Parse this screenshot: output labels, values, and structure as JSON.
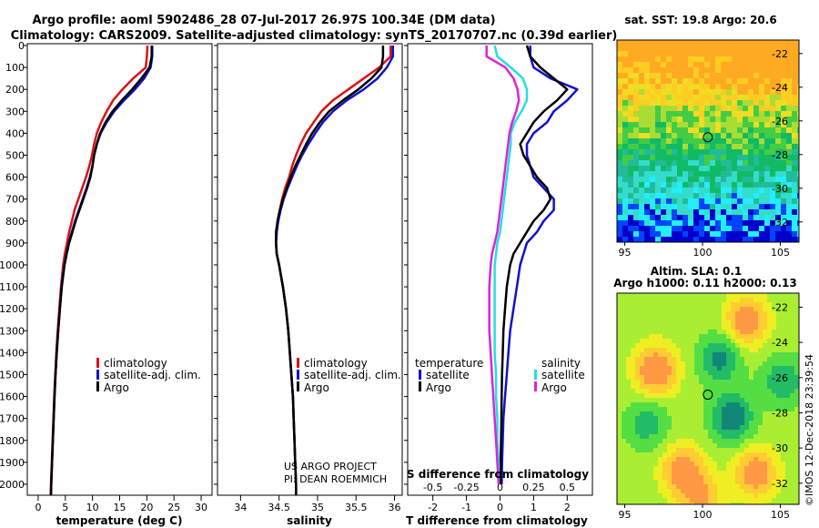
{
  "title_line1": "Argo profile: aoml 5902486_28 07-Jul-2017 26.97S 100.34E (DM data)",
  "title_line2": "Climatology: CARS2009. Satellite-adjusted climatology: synTS_20170707.nc (0.39d earlier)",
  "colors": {
    "climatology": "#dd1111",
    "satellite": "#1111cc",
    "argo": "#000000",
    "sat_salinity": "#22e0e0",
    "argo_salinity": "#dd22dd"
  },
  "chart_data": [
    {
      "type": "line",
      "title": "",
      "xlabel": "temperature (deg C)",
      "ylabel": "",
      "xlim": [
        -2,
        32
      ],
      "ylim": [
        2050,
        0
      ],
      "xticks": [
        0,
        5,
        10,
        15,
        20,
        25,
        30
      ],
      "xtick_labels": [
        "0",
        "5",
        "10",
        "15",
        "20",
        "25",
        "30"
      ],
      "yticks": [
        0,
        100,
        200,
        300,
        400,
        500,
        600,
        700,
        800,
        900,
        1000,
        1100,
        1200,
        1300,
        1400,
        1500,
        1600,
        1700,
        1800,
        1900,
        2000
      ],
      "ytick_labels": [
        "0",
        "100",
        "200",
        "300",
        "400",
        "500",
        "600",
        "700",
        "800",
        "900",
        "1000",
        "1100",
        "1200",
        "1300",
        "1400",
        "1500",
        "1600",
        "1700",
        "1800",
        "1900",
        "2000"
      ],
      "depth": [
        0,
        50,
        100,
        150,
        200,
        250,
        300,
        350,
        400,
        450,
        500,
        550,
        600,
        650,
        700,
        750,
        800,
        850,
        900,
        950,
        1000,
        1100,
        1200,
        1300,
        1400,
        1500,
        1600,
        1700,
        1800,
        1900,
        2000,
        2050
      ],
      "series": [
        {
          "name": "climatology",
          "values": [
            20.1,
            20.0,
            19.8,
            17.5,
            15.5,
            13.8,
            12.6,
            11.6,
            10.8,
            10.3,
            9.9,
            9.4,
            8.8,
            8.1,
            7.4,
            6.7,
            6.2,
            5.7,
            5.3,
            4.9,
            4.6,
            4.2,
            3.9,
            3.6,
            3.35,
            3.15,
            2.95,
            2.8,
            2.65,
            2.5,
            2.35,
            2.3
          ]
        },
        {
          "name": "satellite-adj. clim.",
          "values": [
            21.0,
            21.0,
            20.7,
            19.5,
            17.8,
            15.8,
            14.0,
            12.6,
            11.5,
            10.8,
            10.3,
            10.0,
            9.5,
            8.9,
            8.2,
            7.5,
            6.8,
            6.2,
            5.6,
            5.2,
            4.8,
            4.3,
            4.0,
            3.7,
            3.4,
            3.2,
            3.0,
            2.85,
            2.7,
            2.55,
            2.4,
            2.35
          ]
        },
        {
          "name": "Argo",
          "values": [
            20.9,
            20.9,
            20.5,
            19.0,
            17.3,
            15.4,
            13.7,
            12.4,
            11.4,
            10.8,
            10.3,
            10.0,
            9.6,
            9.0,
            8.3,
            7.6,
            6.9,
            6.3,
            5.7,
            5.25,
            4.85,
            4.35,
            4.0,
            3.7,
            3.42,
            3.2,
            3.0,
            2.85,
            2.7,
            2.55,
            2.4,
            2.35
          ]
        }
      ]
    },
    {
      "type": "line",
      "title": "",
      "xlabel": "salinity",
      "xlim": [
        33.7,
        36.1
      ],
      "ylim": [
        2050,
        0
      ],
      "xticks": [
        34,
        34.5,
        35,
        35.5,
        36
      ],
      "xtick_labels": [
        "34",
        "34.5",
        "35",
        "35.5",
        "36"
      ],
      "depth": [
        0,
        50,
        100,
        150,
        200,
        250,
        300,
        350,
        400,
        450,
        500,
        550,
        600,
        650,
        700,
        750,
        800,
        850,
        900,
        950,
        1000,
        1100,
        1200,
        1300,
        1400,
        1500,
        1600,
        1700,
        1800,
        1900,
        2000,
        2050
      ],
      "series": [
        {
          "name": "climatology",
          "values": [
            35.95,
            35.95,
            35.8,
            35.6,
            35.4,
            35.2,
            35.05,
            34.95,
            34.85,
            34.78,
            34.72,
            34.67,
            34.63,
            34.58,
            34.54,
            34.51,
            34.48,
            34.47,
            34.46,
            34.47,
            34.5,
            34.55,
            34.59,
            34.62,
            34.64,
            34.66,
            34.68,
            34.69,
            34.7,
            34.71,
            34.72,
            34.72
          ]
        },
        {
          "name": "satellite-adj. clim.",
          "values": [
            35.98,
            35.98,
            35.9,
            35.78,
            35.6,
            35.38,
            35.2,
            35.07,
            34.97,
            34.88,
            34.8,
            34.73,
            34.67,
            34.61,
            34.56,
            34.52,
            34.49,
            34.47,
            34.46,
            34.47,
            34.5,
            34.55,
            34.59,
            34.62,
            34.64,
            34.66,
            34.68,
            34.69,
            34.7,
            34.71,
            34.72,
            34.72
          ]
        },
        {
          "name": "Argo",
          "values": [
            35.85,
            35.85,
            35.83,
            35.7,
            35.53,
            35.33,
            35.15,
            35.03,
            34.93,
            34.85,
            34.78,
            34.71,
            34.65,
            34.6,
            34.55,
            34.51,
            34.48,
            34.46,
            34.46,
            34.47,
            34.5,
            34.55,
            34.59,
            34.62,
            34.64,
            34.66,
            34.68,
            34.69,
            34.7,
            34.71,
            34.72,
            34.72
          ]
        }
      ]
    },
    {
      "type": "line",
      "title": "",
      "xlabel": "T difference from climatology",
      "top_xlabel": "S difference from climatology",
      "xlim": [
        -2.75,
        2.75
      ],
      "ylim": [
        2050,
        0
      ],
      "xticks": [
        -2,
        -1,
        0,
        1,
        2
      ],
      "xtick_labels": [
        "-2",
        "-1",
        "0",
        "1",
        "2"
      ],
      "top_xticks": [
        -0.5,
        -0.25,
        0,
        0.25,
        0.5
      ],
      "top_xtick_labels": [
        "-0.5",
        "-0.25",
        "0",
        "0.25",
        "0.5"
      ],
      "depth": [
        0,
        50,
        100,
        150,
        200,
        250,
        300,
        350,
        400,
        450,
        500,
        550,
        600,
        650,
        700,
        750,
        800,
        850,
        900,
        950,
        1000,
        1100,
        1200,
        1300,
        1400,
        1500,
        1600,
        1700,
        1800,
        1900,
        2000
      ],
      "series": [
        {
          "name": "temperature satellite",
          "values": [
            0.9,
            0.9,
            1.0,
            1.5,
            2.3,
            2.0,
            1.6,
            1.4,
            1.0,
            0.8,
            0.8,
            0.9,
            1.0,
            1.3,
            1.6,
            1.6,
            1.3,
            1.1,
            0.8,
            0.7,
            0.6,
            0.5,
            0.4,
            0.3,
            0.25,
            0.2,
            0.15,
            0.1,
            0.08,
            0.06,
            0.05
          ]
        },
        {
          "name": "temperature Argo",
          "values": [
            0.8,
            0.9,
            1.2,
            1.6,
            2.0,
            1.7,
            1.3,
            1.0,
            0.8,
            0.6,
            0.7,
            0.9,
            1.1,
            1.4,
            1.5,
            1.3,
            1.0,
            0.8,
            0.6,
            0.4,
            0.3,
            0.2,
            0.15,
            0.1,
            0.08,
            0.06,
            0.05,
            0.04,
            0.03,
            0.02,
            0.02
          ]
        },
        {
          "name": "salinity satellite",
          "values": [
            -0.04,
            -0.02,
            0.08,
            0.17,
            0.2,
            0.2,
            0.16,
            0.11,
            0.08,
            0.08,
            0.07,
            0.06,
            0.05,
            0.04,
            0.03,
            0.02,
            0.01,
            0.0,
            -0.02,
            -0.03,
            -0.04,
            -0.04,
            -0.04,
            -0.04,
            -0.04,
            -0.03,
            -0.03,
            -0.02,
            -0.02,
            -0.01,
            -0.01
          ]
        },
        {
          "name": "salinity Argo",
          "values": [
            -0.1,
            -0.1,
            0.04,
            0.1,
            0.13,
            0.14,
            0.12,
            0.09,
            0.07,
            0.06,
            0.05,
            0.04,
            0.03,
            0.02,
            0.01,
            0.0,
            -0.01,
            -0.02,
            -0.04,
            -0.06,
            -0.07,
            -0.08,
            -0.08,
            -0.08,
            -0.07,
            -0.06,
            -0.05,
            -0.04,
            -0.03,
            -0.02,
            -0.01
          ]
        }
      ]
    },
    {
      "type": "heatmap",
      "title": "sat. SST: 19.8 Argo: 20.6",
      "xlim": [
        94.5,
        106.2
      ],
      "ylim": [
        -33.2,
        -21.2
      ],
      "xticks": [
        95,
        100,
        105
      ],
      "xtick_labels": [
        "95",
        "100",
        "105"
      ],
      "yticks": [
        -22,
        -24,
        -26,
        -28,
        -30,
        -32
      ],
      "ytick_labels": [
        "-22",
        "-24",
        "-26",
        "-28",
        "-30",
        "-32"
      ],
      "marker": {
        "lon": 100.34,
        "lat": -26.97
      }
    },
    {
      "type": "heatmap",
      "title": "Altim. SLA: 0.1",
      "subtitle": "Argo h1000: 0.11 h2000: 0.13",
      "xlim": [
        94.5,
        106.2
      ],
      "ylim": [
        -33.2,
        -21.2
      ],
      "xticks": [
        95,
        100,
        105
      ],
      "xtick_labels": [
        "95",
        "100",
        "105"
      ],
      "yticks": [
        -22,
        -24,
        -26,
        -28,
        -30,
        -32
      ],
      "ytick_labels": [
        "-22",
        "-24",
        "-26",
        "-28",
        "-30",
        "-32"
      ],
      "marker": {
        "lon": 100.34,
        "lat": -26.97
      }
    }
  ],
  "legend_temp": [
    "climatology",
    "satellite-adj. clim.",
    "Argo"
  ],
  "legend_sal": [
    "climatology",
    "satellite-adj. clim.",
    "Argo"
  ],
  "legend_diff": {
    "temperature_header": "temperature",
    "salinity_header": "salinity",
    "items_temp": [
      "satellite",
      "Argo"
    ],
    "items_sal": [
      "satellite",
      "Argo"
    ]
  },
  "credit_line1": "US ARGO PROJECT",
  "credit_line2": "PI: DEAN ROEMMICH",
  "imos_stamp": "©IMOS 12-Dec-2018 23:39:54"
}
